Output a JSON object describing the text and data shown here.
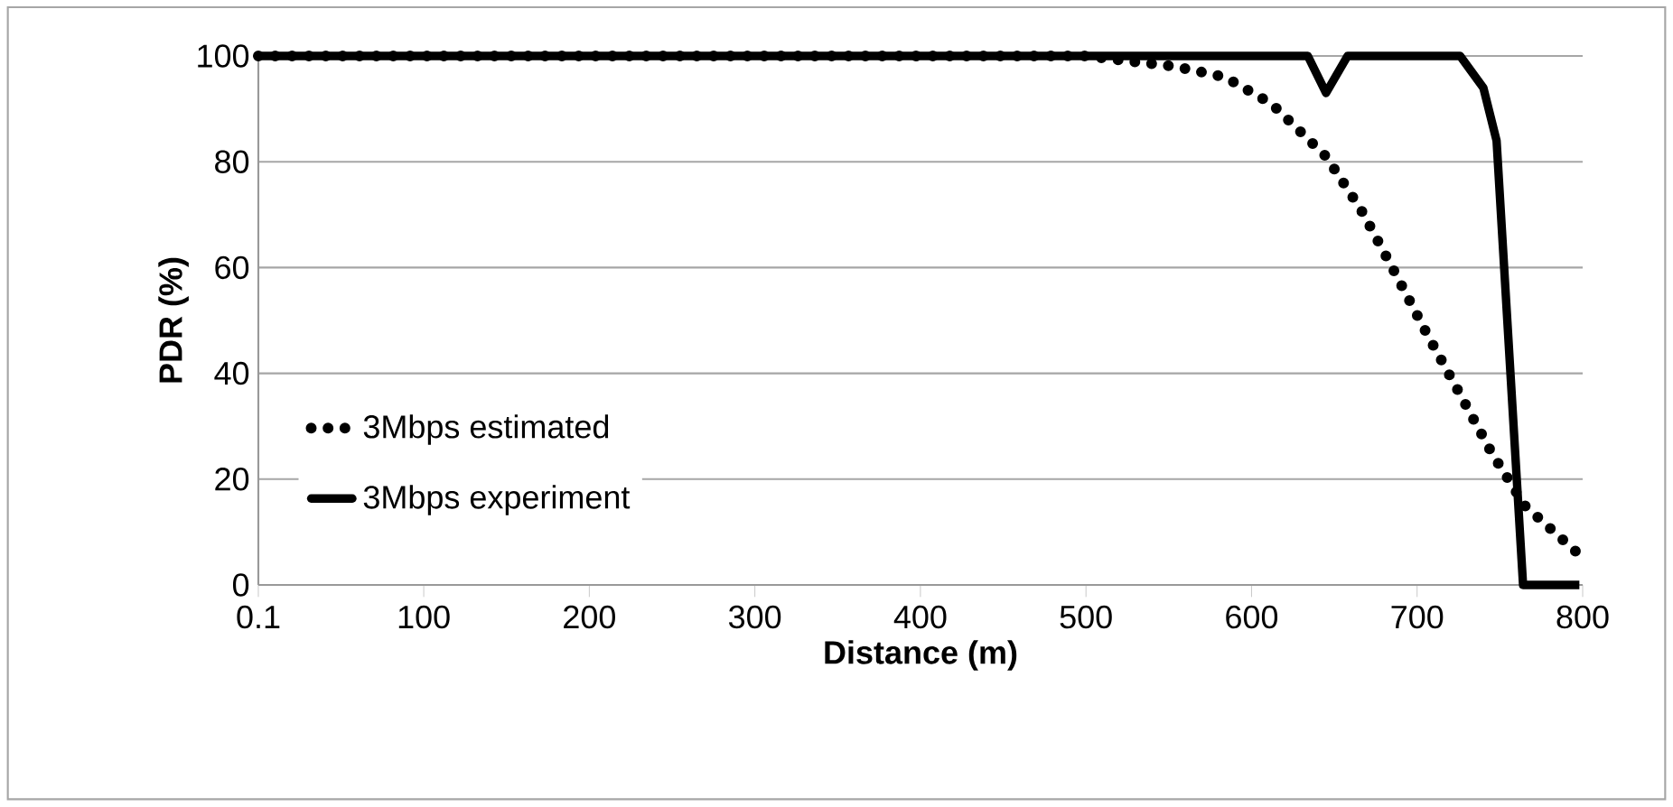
{
  "chart_data": {
    "type": "line",
    "xlabel": "Distance (m)",
    "ylabel": "PDR (%)",
    "xlim": [
      0.1,
      800
    ],
    "xticks": [
      0.1,
      100,
      200,
      300,
      400,
      500,
      600,
      700,
      800
    ],
    "ylim": [
      0,
      100
    ],
    "yticks": [
      0,
      20,
      40,
      60,
      80,
      100
    ],
    "grid": "y",
    "legend": "left",
    "marker": "none",
    "series": [
      {
        "name": "3Mbps estimated",
        "color": "#000000",
        "line_style": "dotted",
        "x": [
          0.1,
          500,
          554,
          584,
          612,
          645,
          666,
          685,
          705,
          726,
          745,
          765,
          797
        ],
        "values": [
          100,
          100,
          98,
          96,
          91,
          81,
          71,
          60,
          48,
          36,
          25,
          15,
          6
        ]
      },
      {
        "name": "3Mbps experiment",
        "color": "#000000",
        "line_style": "solid",
        "x": [
          0.1,
          634,
          645,
          658,
          726,
          740,
          748,
          764,
          798
        ],
        "values": [
          100,
          100,
          93,
          100,
          100,
          94,
          84,
          0,
          0
        ]
      }
    ]
  }
}
